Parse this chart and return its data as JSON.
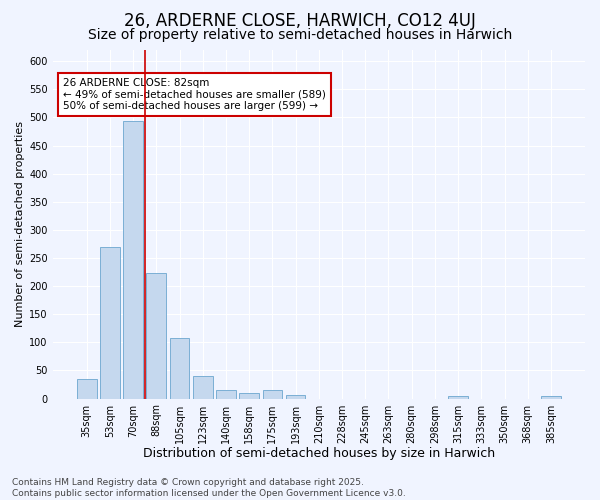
{
  "title": "26, ARDERNE CLOSE, HARWICH, CO12 4UJ",
  "subtitle": "Size of property relative to semi-detached houses in Harwich",
  "xlabel": "Distribution of semi-detached houses by size in Harwich",
  "ylabel": "Number of semi-detached properties",
  "categories": [
    "35sqm",
    "53sqm",
    "70sqm",
    "88sqm",
    "105sqm",
    "123sqm",
    "140sqm",
    "158sqm",
    "175sqm",
    "193sqm",
    "210sqm",
    "228sqm",
    "245sqm",
    "263sqm",
    "280sqm",
    "298sqm",
    "315sqm",
    "333sqm",
    "350sqm",
    "368sqm",
    "385sqm"
  ],
  "values": [
    35,
    270,
    493,
    223,
    108,
    40,
    15,
    10,
    15,
    7,
    0,
    0,
    0,
    0,
    0,
    0,
    5,
    0,
    0,
    0,
    5
  ],
  "bar_color": "#c5d8ee",
  "bar_edge_color": "#7bafd4",
  "background_color": "#f0f4ff",
  "grid_color": "#ffffff",
  "annotation_text": "26 ARDERNE CLOSE: 82sqm\n← 49% of semi-detached houses are smaller (589)\n50% of semi-detached houses are larger (599) →",
  "red_line_x": 2.5,
  "annotation_box_color": "#ffffff",
  "annotation_border_color": "#cc0000",
  "ylim": [
    0,
    620
  ],
  "yticks": [
    0,
    50,
    100,
    150,
    200,
    250,
    300,
    350,
    400,
    450,
    500,
    550,
    600
  ],
  "footer": "Contains HM Land Registry data © Crown copyright and database right 2025.\nContains public sector information licensed under the Open Government Licence v3.0.",
  "title_fontsize": 12,
  "subtitle_fontsize": 10,
  "xlabel_fontsize": 9,
  "ylabel_fontsize": 8,
  "tick_fontsize": 7,
  "footer_fontsize": 6.5
}
